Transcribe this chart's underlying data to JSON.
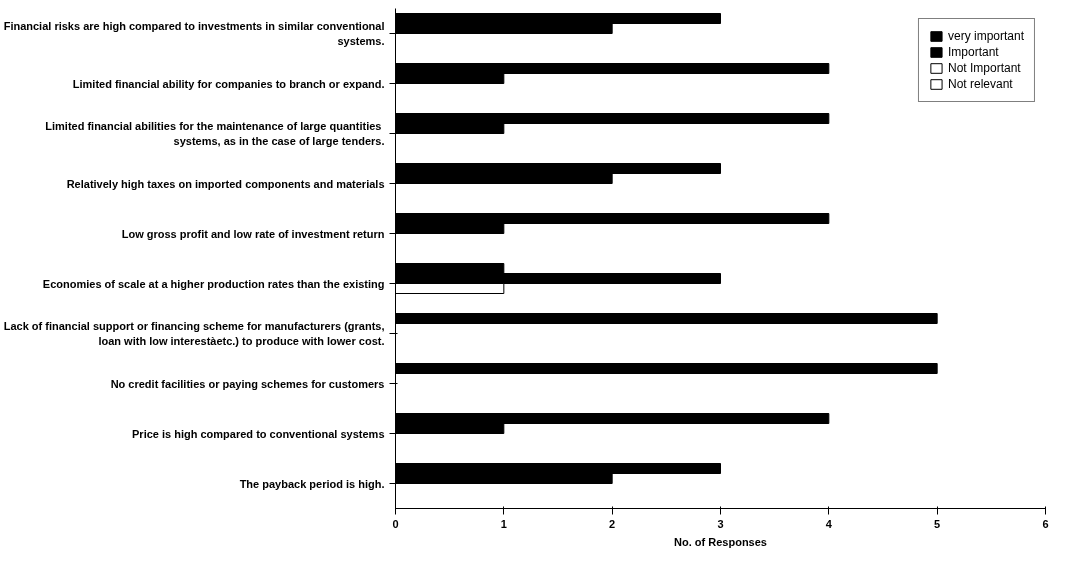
{
  "chart_data": {
    "type": "bar",
    "orientation": "horizontal",
    "xlabel": "No. of Responses",
    "categories": [
      "Financial risks are high compared to investments in similar conventional systems.",
      "Limited financial ability for companies to branch or expand.",
      "Limited financial abilities for the maintenance of  large quantities systems, as in the case of large tenders.",
      "Relatively high taxes on imported components and materials",
      "Low gross profit and low rate of investment return",
      "Economies of scale at a higher production rates than the existing",
      "Lack of financial support or financing scheme for manufacturers (grants, loan with low interestàetc.) to produce with lower cost.",
      "No credit facilities or paying schemes for customers",
      "Price is high compared to conventional systems",
      "The payback period is high."
    ],
    "series": [
      {
        "name": "very important",
        "color": "#000000",
        "values": [
          3,
          4,
          4,
          3,
          4,
          1,
          5,
          5,
          4,
          3
        ]
      },
      {
        "name": "Important",
        "color": "#000000",
        "values": [
          2,
          1,
          1,
          2,
          1,
          3,
          null,
          null,
          1,
          2
        ]
      },
      {
        "name": "Not Important",
        "color": "#ffffff",
        "values": [
          null,
          null,
          null,
          null,
          null,
          1,
          null,
          null,
          null,
          null
        ]
      },
      {
        "name": "Not relevant",
        "color": "#ffffff",
        "values": [
          null,
          null,
          null,
          null,
          null,
          null,
          null,
          null,
          null,
          null
        ]
      }
    ],
    "xlim": [
      0,
      6
    ],
    "xticks": [
      0,
      1,
      2,
      3,
      4,
      5,
      6
    ],
    "grid": false,
    "legend": "right"
  }
}
